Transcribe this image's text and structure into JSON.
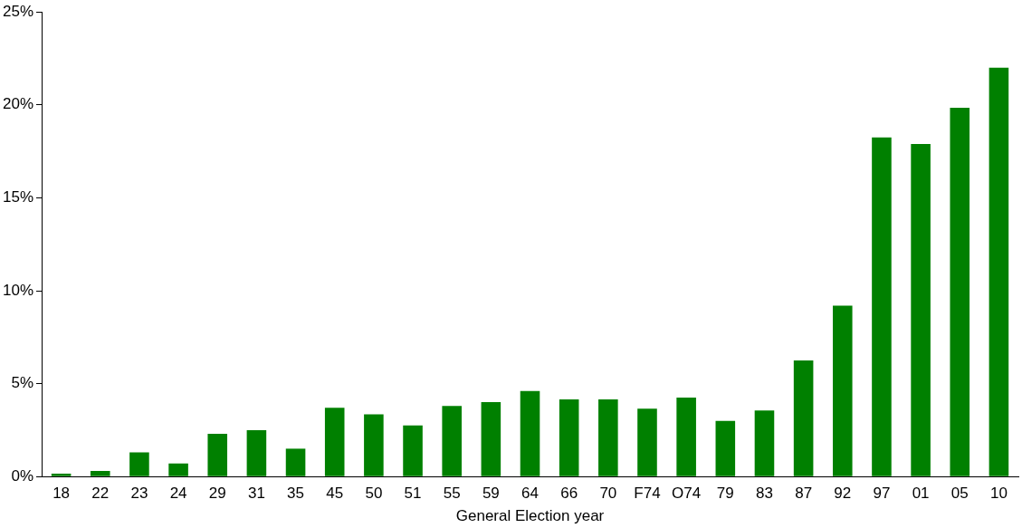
{
  "chart_data": {
    "type": "bar",
    "xlabel": "General Election year",
    "categories": [
      "18",
      "22",
      "23",
      "24",
      "29",
      "31",
      "35",
      "45",
      "50",
      "51",
      "55",
      "59",
      "64",
      "66",
      "70",
      "F74",
      "O74",
      "79",
      "83",
      "87",
      "92",
      "97",
      "01",
      "05",
      "10"
    ],
    "values": [
      0.15,
      0.3,
      1.3,
      0.7,
      2.3,
      2.5,
      1.5,
      3.7,
      3.35,
      2.75,
      3.8,
      4.0,
      4.6,
      4.15,
      4.15,
      3.65,
      4.25,
      3.0,
      3.55,
      6.25,
      9.2,
      18.25,
      17.9,
      19.85,
      22.0
    ],
    "color": "#008000",
    "ylim": [
      0,
      25
    ],
    "yticks": [
      {
        "value": 0,
        "label": "0%"
      },
      {
        "value": 5,
        "label": "5%"
      },
      {
        "value": 10,
        "label": "10%"
      },
      {
        "value": 15,
        "label": "15%"
      },
      {
        "value": 20,
        "label": "20%"
      },
      {
        "value": 25,
        "label": "25%"
      }
    ],
    "grid": false,
    "legend": false
  }
}
